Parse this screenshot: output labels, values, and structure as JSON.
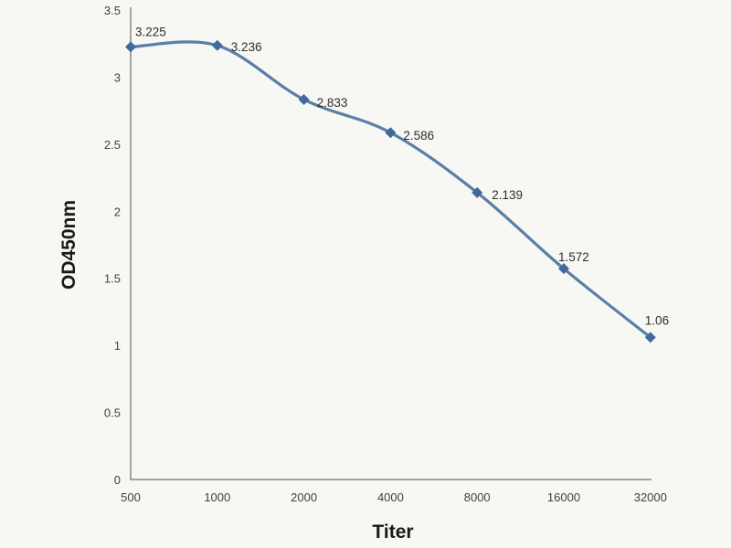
{
  "chart_data": {
    "type": "line",
    "title": "",
    "xlabel": "Titer",
    "ylabel": "OD450nm",
    "categories": [
      "500",
      "1000",
      "2000",
      "4000",
      "8000",
      "16000",
      "32000"
    ],
    "series": [
      {
        "name": "OD450nm",
        "values": [
          3.225,
          3.236,
          2.833,
          2.586,
          2.139,
          1.572,
          1.06
        ],
        "point_labels": [
          "3.225",
          "3.236",
          "2.833",
          "2.586",
          "2.139",
          "1.572",
          "1.06"
        ]
      }
    ],
    "y_ticks": [
      0,
      0.5,
      1,
      1.5,
      2,
      2.5,
      3,
      3.5
    ],
    "y_tick_labels": [
      "0",
      "0.5",
      "1",
      "1.5",
      "2",
      "2.5",
      "3",
      "3.5"
    ],
    "ylim": [
      0,
      3.5
    ],
    "grid": false,
    "legend": "none",
    "line_style": "smooth",
    "marker": "diamond",
    "colors": {
      "line": "#5b7ea7",
      "marker": "#41699e",
      "axis": "#a3a3a3",
      "tick_text": "#404040",
      "label_text": "#2e2e2e",
      "background": "#f7f7f4"
    }
  }
}
